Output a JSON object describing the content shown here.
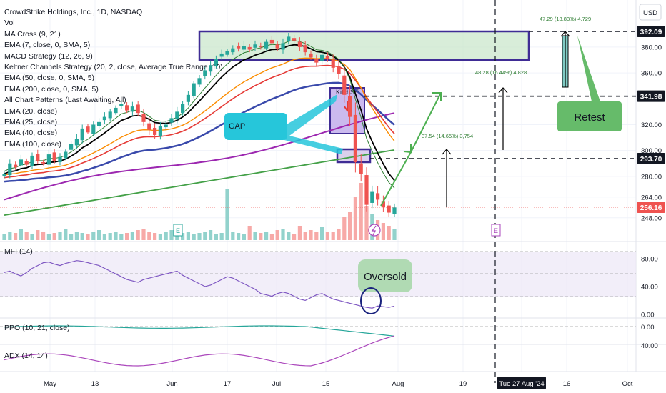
{
  "header": {
    "title": "CrowdStrike Holdings, Inc., 1D, NASDAQ",
    "currency_button": "USD"
  },
  "legend": [
    "Vol",
    "MA Cross (9, 21)",
    "EMA (7, close, 0, SMA, 5)",
    "MACD Strategy (12, 26, 9)",
    "Keltner Channels Strategy (20, 2, close, Average True Range, 10)",
    "EMA (50, close, 0, SMA, 5)",
    "EMA (200, close, 0, SMA, 5)",
    "All Chart Patterns (Last Awaiting, All)",
    "EMA (20, close)",
    "EMA (25, close)",
    "EMA (40, close)",
    "EMA (100, close)"
  ],
  "panes": {
    "mfi_label": "MFI (14)",
    "ppo_label": "PPO (10, 21, close)",
    "adx_label": "ADX (14, 14)"
  },
  "annotations": {
    "gap": "GAP",
    "retest": "Retest",
    "oversold": "Oversold",
    "pattern": "KitchSE",
    "proj1": "37.54 (14.65%) 3,754",
    "proj2": "48.28 (16.44%) 4,828",
    "proj3": "47.29 (13.83%) 4,729",
    "crosshair_date": "Tue 27 Aug '24",
    "earnings_1": "E",
    "earnings_2": "E",
    "earnings_3": "E"
  },
  "colors": {
    "up": "#26a69a",
    "down": "#ef5350",
    "accent_purple": "#3f2c95",
    "box_green": "#c8e6c9",
    "callout_cyan": "#26c6da",
    "retest_green": "#66bb6a",
    "mfi_line": "#7e57c2",
    "ppo_line": "#26a69a",
    "adx_line": "#ab47bc",
    "ema200": "#43a047",
    "ema100": "#9c27b0"
  },
  "chart_data": {
    "type": "line",
    "title": "CrowdStrike Holdings, Inc., 1D, NASDAQ",
    "xlabel": "",
    "ylabel": "USD",
    "x_ticks": [
      "May",
      "13",
      "Jun",
      "17",
      "Jul",
      "15",
      "Aug",
      "19",
      "Tue 27 Aug '24",
      "16",
      "Oct"
    ],
    "ylim": [
      238,
      402
    ],
    "y_ticks": [
      248.0,
      264.0,
      280.0,
      300.0,
      320.0,
      360.0,
      380.0
    ],
    "price_labels": [
      {
        "value": 392.09,
        "label": "392.09"
      },
      {
        "value": 341.98,
        "label": "341.98"
      },
      {
        "value": 293.7,
        "label": "293.70"
      },
      {
        "value": 256.16,
        "label": "256.16",
        "current": true
      }
    ],
    "close_series": [
      282,
      290,
      287,
      293,
      289,
      296,
      292,
      290,
      297,
      292,
      295,
      299,
      305,
      309,
      317,
      314,
      320,
      322,
      326,
      330,
      333,
      336,
      331,
      334,
      329,
      322,
      316,
      312,
      319,
      320,
      325,
      330,
      336,
      343,
      352,
      356,
      362,
      366,
      371,
      375,
      377,
      379,
      379,
      381,
      378,
      382,
      380,
      384,
      383,
      379,
      383,
      388,
      385,
      380,
      376,
      372,
      368,
      374,
      371,
      364,
      359,
      343,
      326,
      291,
      282,
      258,
      268,
      262,
      256,
      252,
      256
    ],
    "mfi_pane": {
      "label": "MFI (14)",
      "y_ticks": [
        0.0,
        40.0,
        80.0
      ],
      "ylim": [
        -5,
        90
      ]
    },
    "ppo_pane": {
      "label": "PPO (10, 21, close)",
      "y_ticks": [
        0.0
      ]
    },
    "adx_pane": {
      "label": "ADX (14, 14)",
      "y_ticks": [
        40.0
      ]
    }
  }
}
